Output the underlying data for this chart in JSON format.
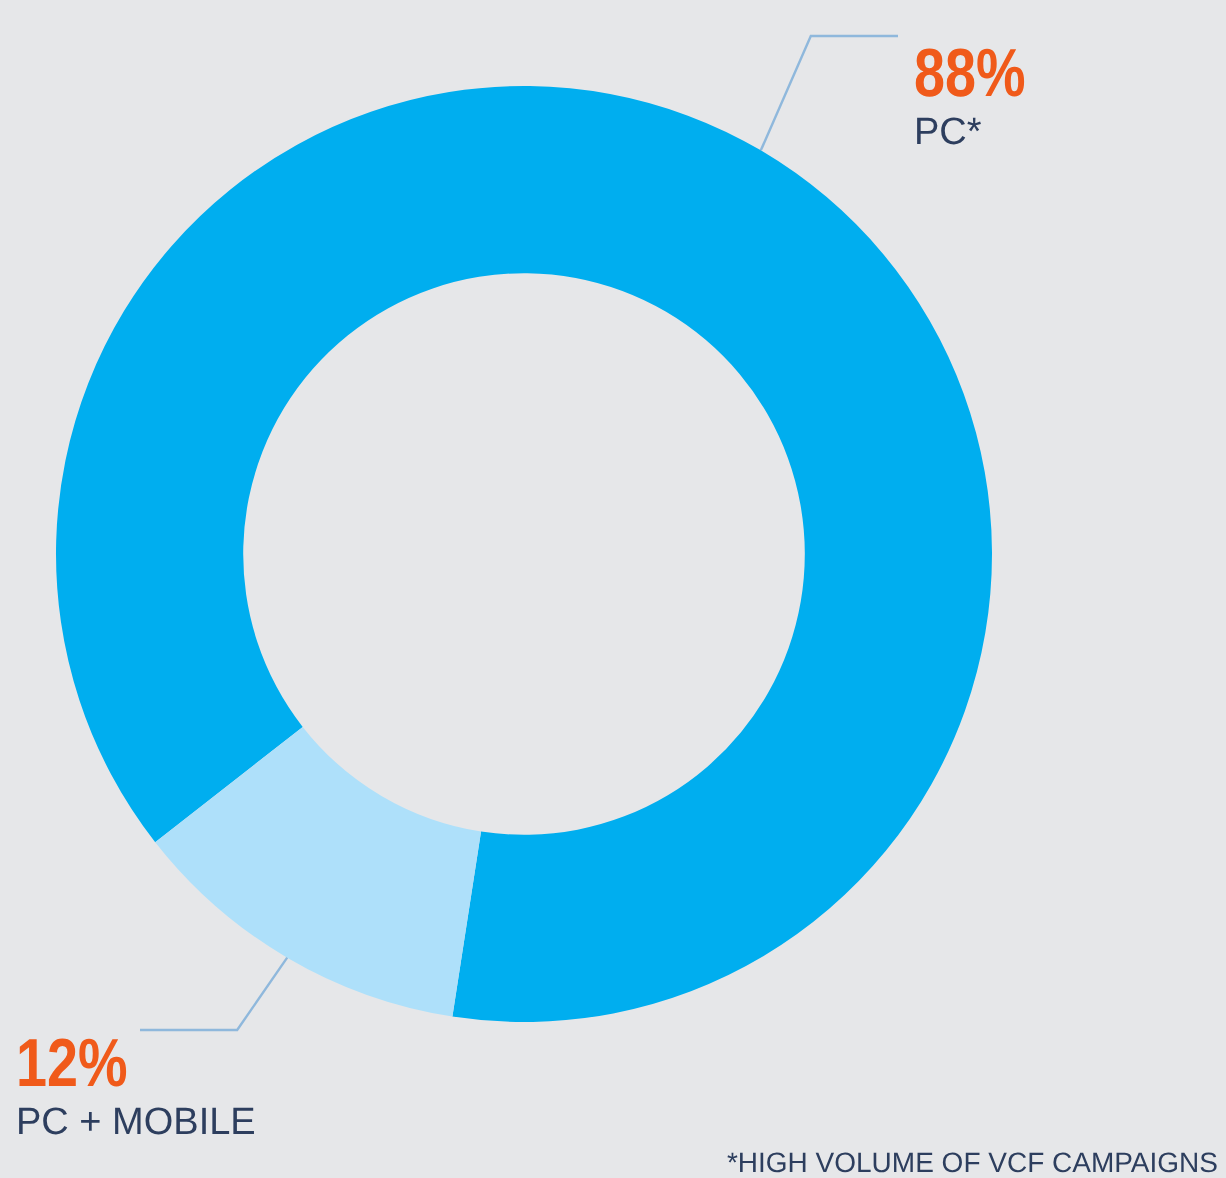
{
  "chart_data": {
    "type": "donut",
    "categories": [
      "PC*",
      "PC + MOBILE"
    ],
    "values": [
      88,
      12
    ],
    "colors": [
      "#00aeef",
      "#aee0fa"
    ],
    "value_labels": [
      "88%",
      "12%"
    ],
    "legend": false,
    "annotations": [
      "*HIGH VOLUME OF VCF CAMPAIGNS"
    ]
  }
}
